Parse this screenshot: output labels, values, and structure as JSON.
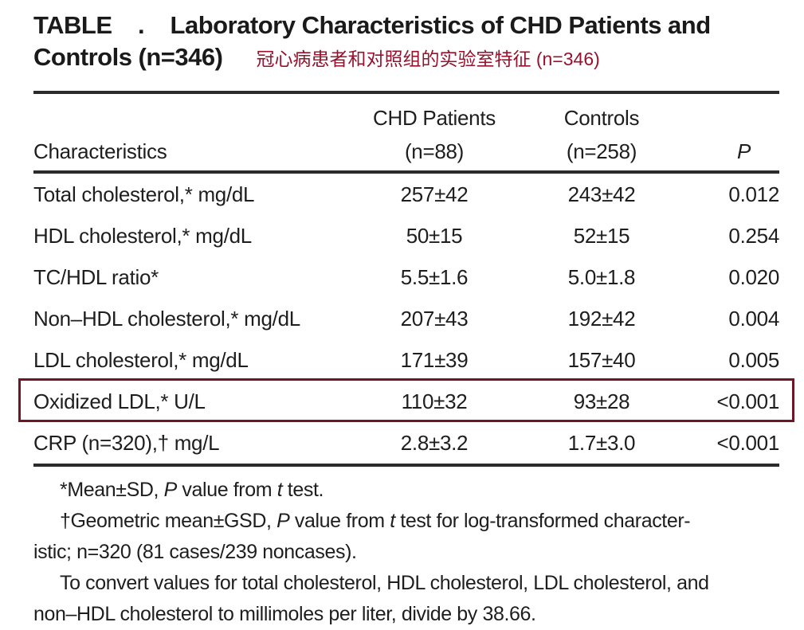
{
  "colors": {
    "text": "#1e1e1e",
    "rule": "#2b2b2b",
    "highlight_box_red": "#6e1626",
    "annotation_red": "#96122d",
    "background": "#ffffff"
  },
  "title": {
    "line1": "TABLE    .    Laboratory Characteristics of CHD Patients and",
    "line2": "Controls (n=346)",
    "annotation_cn": "冠心病患者和对照组的实验室特征 (n=346)"
  },
  "table": {
    "header": {
      "characteristics": "Characteristics",
      "chd_line1": "CHD Patients",
      "chd_line2": "(n=88)",
      "controls_line1": "Controls",
      "controls_line2": "(n=258)",
      "p": "P"
    },
    "rows": [
      {
        "label": "Total cholesterol,* mg/dL",
        "chd": "257±42",
        "controls": "243±42",
        "p": "0.012",
        "highlighted": false
      },
      {
        "label": "HDL cholesterol,* mg/dL",
        "chd": "50±15",
        "controls": "52±15",
        "p": "0.254",
        "highlighted": false
      },
      {
        "label": "TC/HDL ratio*",
        "chd": "5.5±1.6",
        "controls": "5.0±1.8",
        "p": "0.020",
        "highlighted": false
      },
      {
        "label": "Non–HDL cholesterol,* mg/dL",
        "chd": "207±43",
        "controls": "192±42",
        "p": "0.004",
        "highlighted": false
      },
      {
        "label": "LDL cholesterol,* mg/dL",
        "chd": "171±39",
        "controls": "157±40",
        "p": "0.005",
        "highlighted": false
      },
      {
        "label": "Oxidized LDL,* U/L",
        "chd": "110±32",
        "controls": "93±28",
        "p": "<0.001",
        "highlighted": true
      },
      {
        "label": "CRP (n=320),† mg/L",
        "chd": "2.8±3.2",
        "controls": "1.7±3.0",
        "p": "<0.001",
        "highlighted": false
      }
    ]
  },
  "footnotes": {
    "star": {
      "t1": "*Mean±SD, ",
      "i1": "P",
      "t2": " value from ",
      "i2": "t",
      "t3": " test."
    },
    "dagger": {
      "t1": "†Geometric mean±GSD, ",
      "i1": "P",
      "t2": " value from ",
      "i2": "t",
      "t3": " test for log-transformed character-",
      "line2": "istic; n=320 (81 cases/239 noncases)."
    },
    "convert": {
      "line1": "To convert values for total cholesterol, HDL cholesterol, LDL cholesterol, and",
      "line2": "non–HDL cholesterol to millimoles per liter, divide by 38.66."
    }
  }
}
